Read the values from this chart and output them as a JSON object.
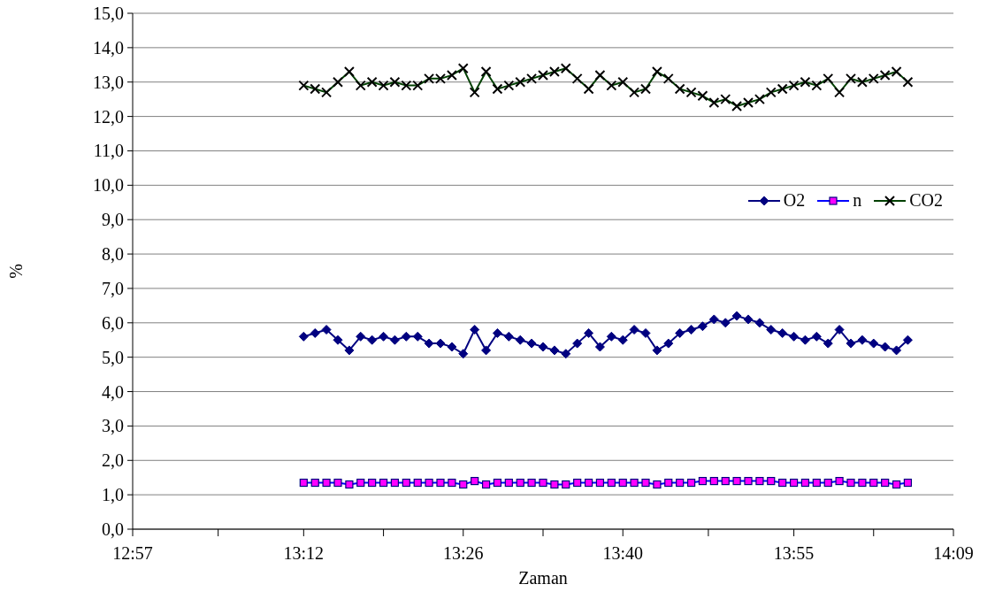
{
  "chart_data": {
    "type": "line",
    "xlabel": "Zaman",
    "ylabel": "%",
    "x": [
      13.2,
      13.2167,
      13.2333,
      13.25,
      13.2667,
      13.2833,
      13.3,
      13.3167,
      13.3333,
      13.35,
      13.3667,
      13.3833,
      13.4,
      13.4167,
      13.4333,
      13.45,
      13.4667,
      13.4833,
      13.5,
      13.5167,
      13.5333,
      13.55,
      13.5667,
      13.5833,
      13.6,
      13.6167,
      13.6333,
      13.65,
      13.6667,
      13.6833,
      13.7,
      13.7167,
      13.7333,
      13.75,
      13.7667,
      13.7833,
      13.8,
      13.8167,
      13.8333,
      13.85,
      13.8667,
      13.8833,
      13.9,
      13.9167,
      13.9333,
      13.95,
      13.9667,
      13.9833,
      14.0,
      14.0167,
      14.0333,
      14.05,
      14.0667,
      14.0833
    ],
    "series": [
      {
        "name": "O2",
        "color": "#000080",
        "marker": "diamond",
        "values": [
          5.6,
          5.7,
          5.8,
          5.5,
          5.2,
          5.6,
          5.5,
          5.6,
          5.5,
          5.6,
          5.6,
          5.4,
          5.4,
          5.3,
          5.1,
          5.8,
          5.2,
          5.7,
          5.6,
          5.5,
          5.4,
          5.3,
          5.2,
          5.1,
          5.4,
          5.7,
          5.3,
          5.6,
          5.5,
          5.8,
          5.7,
          5.2,
          5.4,
          5.7,
          5.8,
          5.9,
          6.1,
          6.0,
          6.2,
          6.1,
          6.0,
          5.8,
          5.7,
          5.6,
          5.5,
          5.6,
          5.4,
          5.8,
          5.4,
          5.5,
          5.4,
          5.3,
          5.2,
          5.5
        ]
      },
      {
        "name": "n",
        "color": "#0000ff",
        "marker": "square",
        "values": [
          1.35,
          1.35,
          1.35,
          1.35,
          1.3,
          1.35,
          1.35,
          1.35,
          1.35,
          1.35,
          1.35,
          1.35,
          1.35,
          1.35,
          1.3,
          1.4,
          1.3,
          1.35,
          1.35,
          1.35,
          1.35,
          1.35,
          1.3,
          1.3,
          1.35,
          1.35,
          1.35,
          1.35,
          1.35,
          1.35,
          1.35,
          1.3,
          1.35,
          1.35,
          1.35,
          1.4,
          1.4,
          1.4,
          1.4,
          1.4,
          1.4,
          1.4,
          1.35,
          1.35,
          1.35,
          1.35,
          1.35,
          1.4,
          1.35,
          1.35,
          1.35,
          1.35,
          1.3,
          1.35
        ]
      },
      {
        "name": "CO2",
        "color": "#004000",
        "marker": "cross",
        "values": [
          12.9,
          12.8,
          12.7,
          13.0,
          13.3,
          12.9,
          13.0,
          12.9,
          13.0,
          12.9,
          12.9,
          13.1,
          13.1,
          13.2,
          13.4,
          12.7,
          13.3,
          12.8,
          12.9,
          13.0,
          13.1,
          13.2,
          13.3,
          13.4,
          13.1,
          12.8,
          13.2,
          12.9,
          13.0,
          12.7,
          12.8,
          13.3,
          13.1,
          12.8,
          12.7,
          12.6,
          12.4,
          12.5,
          12.3,
          12.4,
          12.5,
          12.7,
          12.8,
          12.9,
          13.0,
          12.9,
          13.1,
          12.7,
          13.1,
          13.0,
          13.1,
          13.2,
          13.3,
          13.0
        ]
      }
    ],
    "xlim": [
      12.95,
      14.15
    ],
    "xticks": [
      {
        "value": 12.95,
        "label": "12:57"
      },
      {
        "value": 13.075,
        "label": null
      },
      {
        "value": 13.2,
        "label": "13:12"
      },
      {
        "value": 13.3167,
        "label": null
      },
      {
        "value": 13.4333,
        "label": "13:26"
      },
      {
        "value": 13.55,
        "label": null
      },
      {
        "value": 13.6667,
        "label": "13:40"
      },
      {
        "value": 13.7917,
        "label": null
      },
      {
        "value": 13.9167,
        "label": "13:55"
      },
      {
        "value": 14.0333,
        "label": null
      },
      {
        "value": 14.15,
        "label": "14:09"
      }
    ],
    "ylim": [
      0,
      15
    ],
    "yticks": [
      {
        "value": 0,
        "label": "0,0"
      },
      {
        "value": 1,
        "label": "1,0"
      },
      {
        "value": 2,
        "label": "2,0"
      },
      {
        "value": 3,
        "label": "3,0"
      },
      {
        "value": 4,
        "label": "4,0"
      },
      {
        "value": 5,
        "label": "5,0"
      },
      {
        "value": 6,
        "label": "6,0"
      },
      {
        "value": 7,
        "label": "7,0"
      },
      {
        "value": 8,
        "label": "8,0"
      },
      {
        "value": 9,
        "label": "9,0"
      },
      {
        "value": 10,
        "label": "10,0"
      },
      {
        "value": 11,
        "label": "11,0"
      },
      {
        "value": 12,
        "label": "12,0"
      },
      {
        "value": 13,
        "label": "13,0"
      },
      {
        "value": 14,
        "label": "14,0"
      },
      {
        "value": 15,
        "label": "15,0"
      }
    ],
    "grid": "y",
    "legend": "right",
    "line_style": "solid"
  }
}
